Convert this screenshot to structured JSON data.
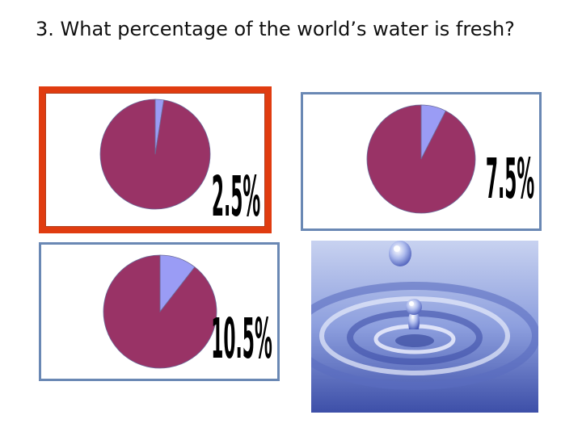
{
  "question": "3. What percentage of the world’s water is fresh?",
  "colors": {
    "water": "#9a9cf5",
    "land": "#993366",
    "selected_border": "#e03c10",
    "panel_border": "#6a88b4"
  },
  "chart_data": [
    {
      "type": "pie",
      "label": "2.5%",
      "selected": true,
      "slices": [
        {
          "value": 2.5,
          "color": "#9a9cf5"
        },
        {
          "value": 97.5,
          "color": "#993366"
        }
      ]
    },
    {
      "type": "pie",
      "label": "7.5%",
      "selected": false,
      "slices": [
        {
          "value": 7.5,
          "color": "#9a9cf5"
        },
        {
          "value": 92.5,
          "color": "#993366"
        }
      ]
    },
    {
      "type": "pie",
      "label": "10.5%",
      "selected": false,
      "slices": [
        {
          "value": 10.5,
          "color": "#9a9cf5"
        },
        {
          "value": 89.5,
          "color": "#993366"
        }
      ]
    }
  ],
  "image": {
    "subject": "water-drop"
  }
}
